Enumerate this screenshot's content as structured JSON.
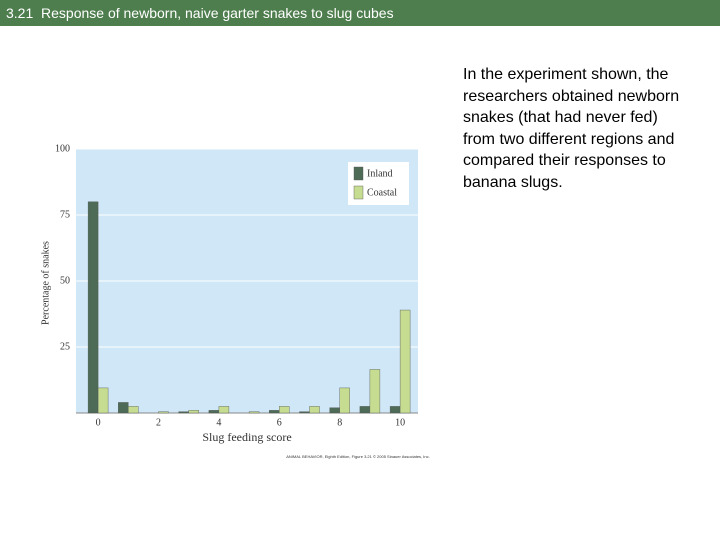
{
  "header": {
    "title": "3.21  Response of newborn, naive garter snakes to slug cubes"
  },
  "body_text": "In the experiment shown, the researchers obtained newborn snakes (that had never fed) from two different regions and compared their responses to banana slugs.",
  "figure_credit": "ANIMAL BEHAVIOR, Eighth Edition, Figure 3.21 © 2005 Sinauer Associates, Inc.",
  "chart_data": {
    "type": "bar",
    "x_label": "Slug feeding score",
    "y_label": "Percentage of snakes",
    "categories": [
      "0",
      null,
      "2",
      null,
      "4",
      null,
      "6",
      null,
      "8",
      null,
      "10"
    ],
    "series": [
      {
        "name": "Inland",
        "color": "#4d6b57",
        "values": [
          80,
          4,
          0,
          0.5,
          1,
          0,
          1,
          0.5,
          2,
          2.5,
          2.5
        ]
      },
      {
        "name": "Coastal",
        "color": "#c5dc91",
        "values": [
          9.5,
          2.5,
          0.5,
          1,
          2.5,
          0.5,
          2.5,
          2.5,
          9.5,
          16.5,
          39
        ]
      }
    ],
    "ylim": [
      0,
      100
    ],
    "yticks": [
      25,
      50,
      75,
      100
    ],
    "grid": true,
    "legend": "upper right"
  }
}
